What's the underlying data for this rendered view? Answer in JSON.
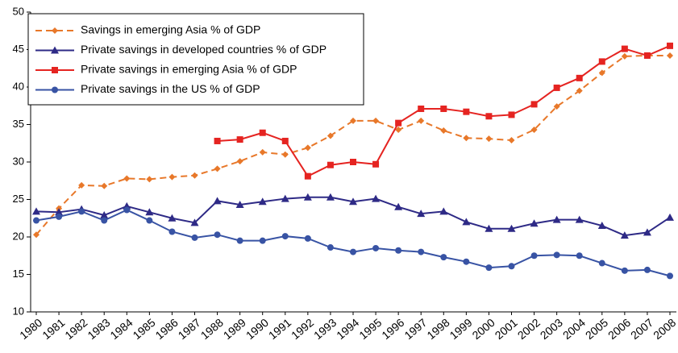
{
  "chart_data": {
    "type": "line",
    "categories": [
      "1980",
      "1981",
      "1982",
      "1983",
      "1984",
      "1985",
      "1986",
      "1987",
      "1988",
      "1989",
      "1990",
      "1991",
      "1992",
      "1993",
      "1994",
      "1995",
      "1996",
      "1997",
      "1998",
      "1999",
      "2000",
      "2001",
      "2002",
      "2003",
      "2004",
      "2005",
      "2006",
      "2007",
      "2008"
    ],
    "series": [
      {
        "name": "Savings in emerging Asia % of GDP",
        "color": "#e8782a",
        "marker": "diamond",
        "dashed": true,
        "values": [
          20.3,
          23.8,
          26.9,
          26.8,
          27.8,
          27.7,
          28.0,
          28.2,
          29.1,
          30.1,
          31.3,
          31.0,
          31.9,
          33.5,
          35.5,
          35.5,
          34.3,
          35.5,
          34.2,
          33.2,
          33.1,
          32.9,
          34.3,
          37.4,
          39.5,
          41.9,
          44.1,
          44.2,
          44.2
        ]
      },
      {
        "name": "Private savings in developed countries % of GDP",
        "color": "#2e2a86",
        "marker": "triangle",
        "dashed": false,
        "values": [
          23.4,
          23.3,
          23.7,
          22.9,
          24.1,
          23.3,
          22.5,
          21.9,
          24.8,
          24.3,
          24.7,
          25.1,
          25.3,
          25.3,
          24.7,
          25.1,
          24.0,
          23.1,
          23.4,
          22.0,
          21.1,
          21.1,
          21.8,
          22.3,
          22.3,
          21.5,
          20.2,
          20.6,
          22.6
        ]
      },
      {
        "name": "Private savings in emerging Asia % of GDP",
        "color": "#e52421",
        "marker": "square",
        "dashed": false,
        "values": [
          null,
          null,
          null,
          null,
          null,
          null,
          null,
          null,
          32.8,
          33.0,
          33.9,
          32.8,
          28.1,
          29.6,
          30.0,
          29.7,
          35.2,
          37.1,
          37.1,
          36.7,
          36.1,
          36.3,
          37.7,
          39.9,
          41.2,
          43.4,
          45.1,
          44.2,
          45.5
        ]
      },
      {
        "name": "Private savings in the US % of GDP",
        "color": "#3853a4",
        "marker": "circle",
        "dashed": false,
        "values": [
          22.2,
          22.7,
          23.4,
          22.2,
          23.6,
          22.2,
          20.7,
          19.9,
          20.3,
          19.5,
          19.5,
          20.1,
          19.8,
          18.6,
          18.0,
          18.5,
          18.2,
          18.0,
          17.3,
          16.7,
          15.9,
          16.1,
          17.5,
          17.6,
          17.5,
          16.5,
          15.5,
          15.6,
          14.8
        ]
      }
    ],
    "ylim": [
      10,
      50
    ],
    "yticks": [
      10,
      15,
      20,
      25,
      30,
      35,
      40,
      45,
      50
    ],
    "grid": false,
    "legend": "top-left"
  }
}
